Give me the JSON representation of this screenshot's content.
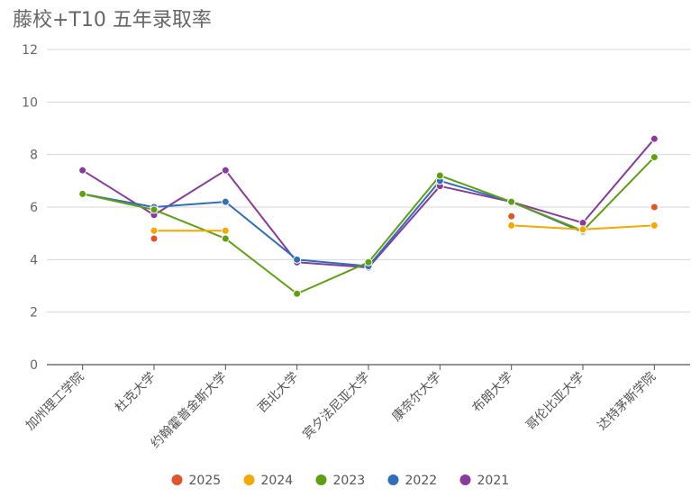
{
  "chart_data": {
    "type": "line",
    "title": "藤校+T10 五年录取率",
    "xlabel": "",
    "ylabel": "",
    "ylim": [
      0,
      12
    ],
    "yticks": [
      0,
      2,
      4,
      6,
      8,
      10,
      12
    ],
    "grid": true,
    "legend_position": "bottom",
    "categories": [
      "加州理工学院",
      "杜克大学",
      "约翰霍普金斯大学",
      "西北大学",
      "宾夕法尼亚大学",
      "康奈尔大学",
      "布朗大学",
      "哥伦比亚大学",
      "达特茅斯学院"
    ],
    "series": [
      {
        "name": "2025",
        "color": "#e0562a",
        "values": [
          null,
          4.8,
          null,
          null,
          null,
          null,
          5.65,
          null,
          6.0
        ]
      },
      {
        "name": "2024",
        "color": "#f5a800",
        "values": [
          null,
          5.1,
          5.1,
          null,
          null,
          null,
          5.3,
          5.15,
          5.3
        ]
      },
      {
        "name": "2023",
        "color": "#5f9f12",
        "values": [
          6.5,
          5.9,
          4.8,
          2.7,
          3.9,
          7.2,
          6.2,
          5.1,
          7.9
        ]
      },
      {
        "name": "2022",
        "color": "#2f6fba",
        "values": [
          6.5,
          6.0,
          6.2,
          4.0,
          3.75,
          7.0,
          6.2,
          5.05,
          null
        ]
      },
      {
        "name": "2021",
        "color": "#8a3a9c",
        "values": [
          7.4,
          5.7,
          7.4,
          3.9,
          3.7,
          6.8,
          6.2,
          5.4,
          8.6
        ]
      }
    ]
  }
}
